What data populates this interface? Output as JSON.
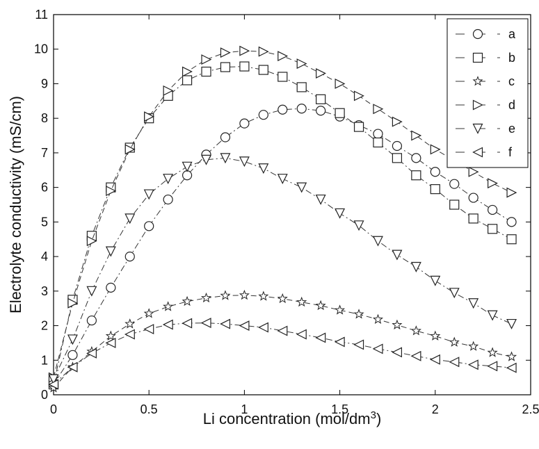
{
  "chart_data": {
    "type": "line",
    "title": "",
    "xlabel": "Li concentration (mol/dm",
    "xlabel_sup": "3",
    "xlabel_tail": ")",
    "ylabel": "Electrolyte conductivity (mS/cm)",
    "xlim": [
      0,
      2.5
    ],
    "ylim": [
      0,
      11
    ],
    "xticks": [
      "0",
      "0.5",
      "1",
      "1.5",
      "2",
      "2.5"
    ],
    "yticks": [
      "0",
      "1",
      "2",
      "3",
      "4",
      "5",
      "6",
      "7",
      "8",
      "9",
      "10",
      "11"
    ],
    "grid": false,
    "legend_position": "top-right",
    "x": [
      0,
      0.1,
      0.2,
      0.3,
      0.4,
      0.5,
      0.6,
      0.7,
      0.8,
      0.9,
      1.0,
      1.1,
      1.2,
      1.3,
      1.4,
      1.5,
      1.6,
      1.7,
      1.8,
      1.9,
      2.0,
      2.1,
      2.2,
      2.3,
      2.4
    ],
    "series": [
      {
        "name": "a",
        "marker": "circle",
        "dash": "dashdot",
        "values": [
          0.3,
          1.15,
          2.15,
          3.1,
          4.0,
          4.88,
          5.65,
          6.35,
          6.95,
          7.45,
          7.85,
          8.1,
          8.25,
          8.28,
          8.22,
          8.05,
          7.8,
          7.55,
          7.2,
          6.85,
          6.45,
          6.1,
          5.7,
          5.35,
          5.0
        ]
      },
      {
        "name": "b",
        "marker": "square",
        "dash": "dashdot",
        "values": [
          0.3,
          2.75,
          4.6,
          6.0,
          7.15,
          8.0,
          8.65,
          9.1,
          9.35,
          9.48,
          9.5,
          9.4,
          9.2,
          8.9,
          8.55,
          8.15,
          7.75,
          7.3,
          6.85,
          6.35,
          5.95,
          5.5,
          5.1,
          4.8,
          4.5
        ]
      },
      {
        "name": "c",
        "marker": "star",
        "dash": "dash",
        "values": [
          0.2,
          0.8,
          1.25,
          1.7,
          2.05,
          2.35,
          2.55,
          2.7,
          2.8,
          2.87,
          2.88,
          2.85,
          2.78,
          2.68,
          2.58,
          2.45,
          2.33,
          2.18,
          2.02,
          1.85,
          1.7,
          1.52,
          1.4,
          1.22,
          1.1
        ]
      },
      {
        "name": "d",
        "marker": "triangle-right",
        "dash": "dash",
        "values": [
          0.5,
          2.65,
          4.45,
          5.9,
          7.1,
          8.05,
          8.8,
          9.35,
          9.7,
          9.9,
          9.95,
          9.93,
          9.8,
          9.58,
          9.3,
          9.0,
          8.65,
          8.27,
          7.9,
          7.5,
          7.1,
          6.78,
          6.45,
          6.12,
          5.85
        ]
      },
      {
        "name": "e",
        "marker": "triangle-down",
        "dash": "dashdot",
        "values": [
          0.45,
          1.6,
          3.0,
          4.15,
          5.1,
          5.8,
          6.25,
          6.6,
          6.8,
          6.85,
          6.75,
          6.55,
          6.25,
          6.0,
          5.65,
          5.25,
          4.9,
          4.45,
          4.05,
          3.7,
          3.3,
          2.95,
          2.65,
          2.3,
          2.05
        ]
      },
      {
        "name": "f",
        "marker": "triangle-left",
        "dash": "dashdot",
        "values": [
          0.3,
          0.8,
          1.2,
          1.5,
          1.75,
          1.9,
          2.03,
          2.07,
          2.08,
          2.05,
          2.0,
          1.95,
          1.85,
          1.75,
          1.65,
          1.53,
          1.45,
          1.33,
          1.23,
          1.12,
          1.02,
          0.95,
          0.87,
          0.83,
          0.78
        ]
      }
    ]
  }
}
